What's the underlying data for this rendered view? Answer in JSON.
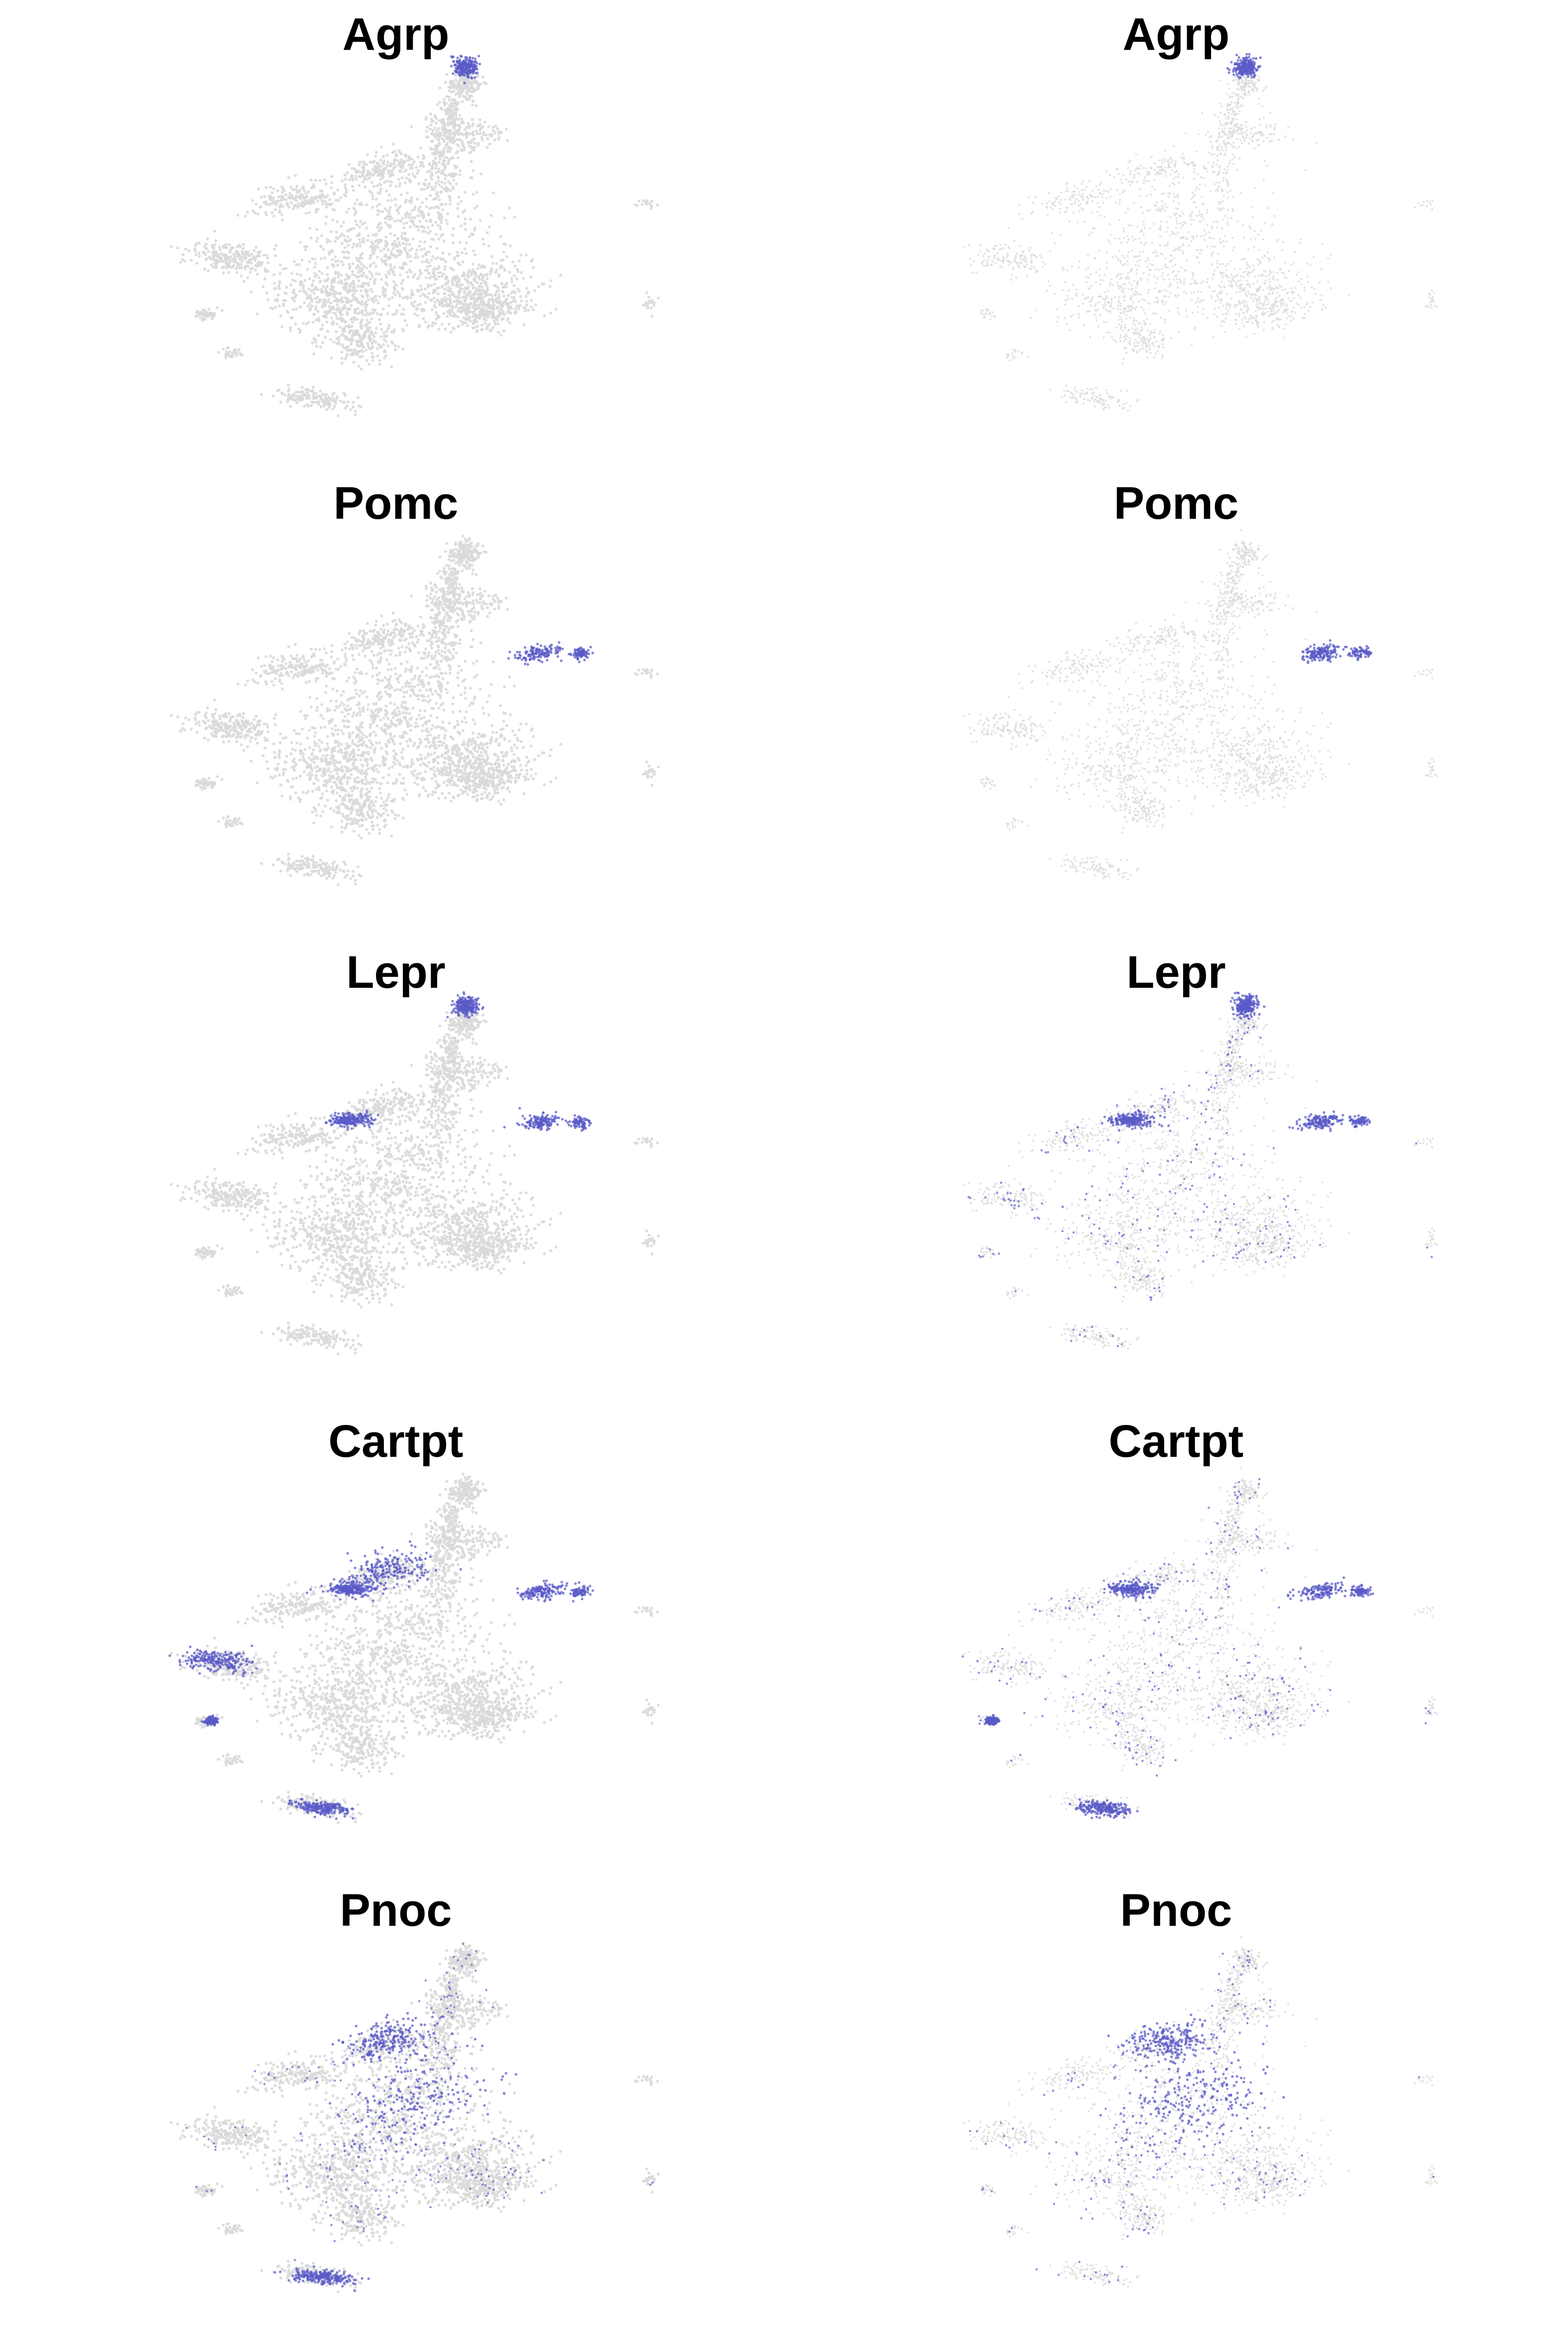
{
  "colors": {
    "background": "#ffffff",
    "low_expression": "#d9d9d9",
    "high_expression": "#5a5ac8"
  },
  "chart_data": [
    {
      "type": "scatter",
      "title": "Agrp",
      "row": 1,
      "column": 1,
      "embedding_variant": "A",
      "expression_color": "#5a5ac8",
      "expressing_regions": [
        "top-tip"
      ],
      "grid": false,
      "legend": "none"
    },
    {
      "type": "scatter",
      "title": "Agrp",
      "row": 1,
      "column": 2,
      "embedding_variant": "B",
      "expression_color": "#5a5ac8",
      "expressing_regions": [
        "top-tip"
      ],
      "grid": false,
      "legend": "none"
    },
    {
      "type": "scatter",
      "title": "Pomc",
      "row": 2,
      "column": 1,
      "embedding_variant": "A",
      "expression_color": "#5a5ac8",
      "expressing_regions": [
        "right-arm"
      ],
      "grid": false,
      "legend": "none"
    },
    {
      "type": "scatter",
      "title": "Pomc",
      "row": 2,
      "column": 2,
      "embedding_variant": "B",
      "expression_color": "#5a5ac8",
      "expressing_regions": [
        "right-arm"
      ],
      "grid": false,
      "legend": "none"
    },
    {
      "type": "scatter",
      "title": "Lepr",
      "row": 3,
      "column": 1,
      "embedding_variant": "A",
      "expression_color": "#5a5ac8",
      "expressing_regions": [
        "upper-left-arm",
        "right-arm",
        "top-tip"
      ],
      "grid": false,
      "legend": "none"
    },
    {
      "type": "scatter",
      "title": "Lepr",
      "row": 3,
      "column": 2,
      "embedding_variant": "B",
      "expression_color": "#5a5ac8",
      "expressing_regions": [
        "top-tip",
        "upper-left-arm",
        "right-arm",
        "scattered"
      ],
      "grid": false,
      "legend": "none"
    },
    {
      "type": "scatter",
      "title": "Cartpt",
      "row": 4,
      "column": 1,
      "embedding_variant": "A",
      "expression_color": "#5a5ac8",
      "expressing_regions": [
        "far-left",
        "bottom-island",
        "upper-left-arm",
        "upper-middle",
        "right-arm",
        "small-left"
      ],
      "grid": false,
      "legend": "none"
    },
    {
      "type": "scatter",
      "title": "Cartpt",
      "row": 4,
      "column": 2,
      "embedding_variant": "B",
      "expression_color": "#5a5ac8",
      "expressing_regions": [
        "right-arm",
        "upper-left-arm",
        "bottom-island",
        "small-left",
        "scattered"
      ],
      "grid": false,
      "legend": "none"
    },
    {
      "type": "scatter",
      "title": "Pnoc",
      "row": 5,
      "column": 1,
      "embedding_variant": "A",
      "expression_color": "#5a5ac8",
      "expressing_regions": [
        "central",
        "upper-middle",
        "bottom-island",
        "scattered"
      ],
      "grid": false,
      "legend": "none"
    },
    {
      "type": "scatter",
      "title": "Pnoc",
      "row": 5,
      "column": 2,
      "embedding_variant": "B",
      "expression_color": "#5a5ac8",
      "expressing_regions": [
        "central",
        "upper-middle",
        "scattered"
      ],
      "grid": false,
      "legend": "none"
    }
  ]
}
